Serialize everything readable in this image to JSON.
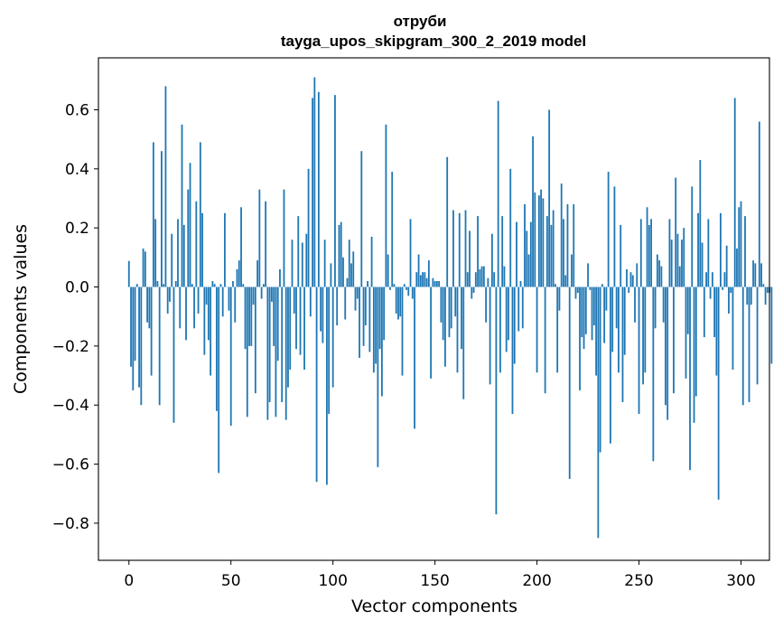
{
  "chart_data": {
    "type": "bar",
    "title": "отруби",
    "subtitle": "tayga_upos_skipgram_300_2_2019 model",
    "xlabel": "Vector components",
    "ylabel": "Components values",
    "xlim": [
      -14.95,
      313.95
    ],
    "ylim": [
      -0.9257,
      0.7759
    ],
    "x_ticks": [
      0,
      50,
      100,
      150,
      200,
      250,
      300
    ],
    "y_ticks": [
      -0.8,
      -0.6,
      -0.4,
      -0.2,
      0.0,
      0.2,
      0.4,
      0.6
    ],
    "y_tick_labels": [
      "−0.8",
      "−0.6",
      "−0.4",
      "−0.2",
      "0.0",
      "0.2",
      "0.4",
      "0.6"
    ],
    "bar_color": "#1f77b4",
    "values": [
      0.088,
      -0.27,
      -0.35,
      -0.25,
      0.01,
      -0.34,
      -0.4,
      0.13,
      0.12,
      -0.12,
      -0.14,
      -0.3,
      0.49,
      0.23,
      0.02,
      -0.4,
      0.46,
      0.01,
      0.68,
      -0.09,
      -0.05,
      0.18,
      -0.46,
      0.02,
      0.23,
      -0.14,
      0.55,
      0.21,
      -0.18,
      0.33,
      0.42,
      0.01,
      -0.14,
      0.29,
      -0.09,
      0.49,
      0.25,
      -0.23,
      -0.06,
      -0.18,
      -0.3,
      0.02,
      0.01,
      -0.42,
      -0.63,
      0.01,
      -0.1,
      0.25,
      0.0,
      -0.08,
      -0.47,
      0.02,
      -0.12,
      0.06,
      0.09,
      0.27,
      0.01,
      -0.21,
      -0.44,
      -0.2,
      -0.2,
      -0.06,
      -0.36,
      0.09,
      0.33,
      -0.04,
      0.01,
      0.29,
      -0.45,
      -0.39,
      -0.05,
      -0.2,
      -0.44,
      -0.25,
      0.06,
      -0.39,
      0.33,
      -0.45,
      -0.34,
      -0.28,
      0.16,
      -0.09,
      -0.21,
      0.24,
      -0.23,
      0.15,
      -0.28,
      0.18,
      0.4,
      -0.1,
      0.64,
      0.71,
      -0.66,
      0.66,
      -0.15,
      -0.19,
      0.16,
      -0.67,
      -0.43,
      0.08,
      -0.34,
      0.65,
      -0.13,
      0.21,
      0.22,
      0.1,
      -0.11,
      0.03,
      0.16,
      0.08,
      0.12,
      -0.08,
      -0.04,
      -0.24,
      0.46,
      -0.2,
      -0.13,
      0.02,
      -0.22,
      0.17,
      -0.29,
      -0.26,
      -0.61,
      -0.21,
      -0.37,
      -0.18,
      0.55,
      0.11,
      -0.01,
      0.39,
      0.01,
      -0.09,
      -0.11,
      -0.1,
      -0.3,
      0.01,
      -0.01,
      -0.03,
      0.23,
      -0.04,
      -0.48,
      0.05,
      0.11,
      0.04,
      0.05,
      0.05,
      0.03,
      0.09,
      -0.31,
      0.03,
      0.02,
      0.02,
      0.02,
      -0.12,
      -0.18,
      -0.27,
      0.44,
      -0.17,
      -0.14,
      0.26,
      -0.1,
      -0.29,
      0.25,
      -0.21,
      -0.38,
      0.26,
      0.05,
      0.19,
      -0.04,
      -0.02,
      0.05,
      0.24,
      0.06,
      0.07,
      0.07,
      -0.12,
      0.03,
      -0.33,
      0.18,
      0.05,
      -0.77,
      0.63,
      -0.29,
      0.24,
      0.07,
      -0.22,
      -0.18,
      0.4,
      -0.43,
      -0.26,
      0.22,
      -0.15,
      0.02,
      -0.14,
      0.28,
      0.19,
      0.11,
      0.22,
      0.51,
      0.32,
      -0.29,
      0.31,
      0.33,
      0.3,
      -0.36,
      0.24,
      0.6,
      0.21,
      0.26,
      0.01,
      -0.29,
      -0.08,
      0.35,
      0.23,
      0.04,
      0.28,
      -0.65,
      0.11,
      0.28,
      -0.04,
      -0.02,
      -0.35,
      -0.17,
      -0.21,
      -0.16,
      0.08,
      -0.01,
      -0.18,
      -0.13,
      -0.3,
      -0.85,
      -0.56,
      0.01,
      -0.19,
      -0.08,
      0.39,
      -0.53,
      -0.22,
      0.34,
      -0.14,
      -0.29,
      0.21,
      -0.39,
      -0.23,
      0.06,
      -0.02,
      0.05,
      0.04,
      -0.12,
      0.08,
      -0.43,
      0.23,
      -0.33,
      -0.29,
      0.27,
      0.21,
      0.23,
      -0.59,
      -0.14,
      0.11,
      0.09,
      0.07,
      -0.12,
      -0.4,
      -0.45,
      0.23,
      0.16,
      -0.36,
      0.37,
      0.18,
      0.07,
      0.16,
      0.2,
      -0.31,
      -0.16,
      -0.62,
      0.34,
      -0.46,
      -0.37,
      0.25,
      0.43,
      0.15,
      -0.17,
      0.05,
      0.23,
      -0.04,
      0.05,
      -0.17,
      -0.3,
      -0.72,
      0.25,
      -0.01,
      0.05,
      0.14,
      -0.09,
      -0.02,
      -0.28,
      0.64,
      0.13,
      0.27,
      0.29,
      -0.4,
      0.24,
      -0.06,
      -0.39,
      -0.06,
      0.09,
      0.08,
      -0.33,
      0.56,
      0.08,
      0.01,
      -0.06,
      -0.02,
      -0.02,
      -0.26
    ]
  }
}
